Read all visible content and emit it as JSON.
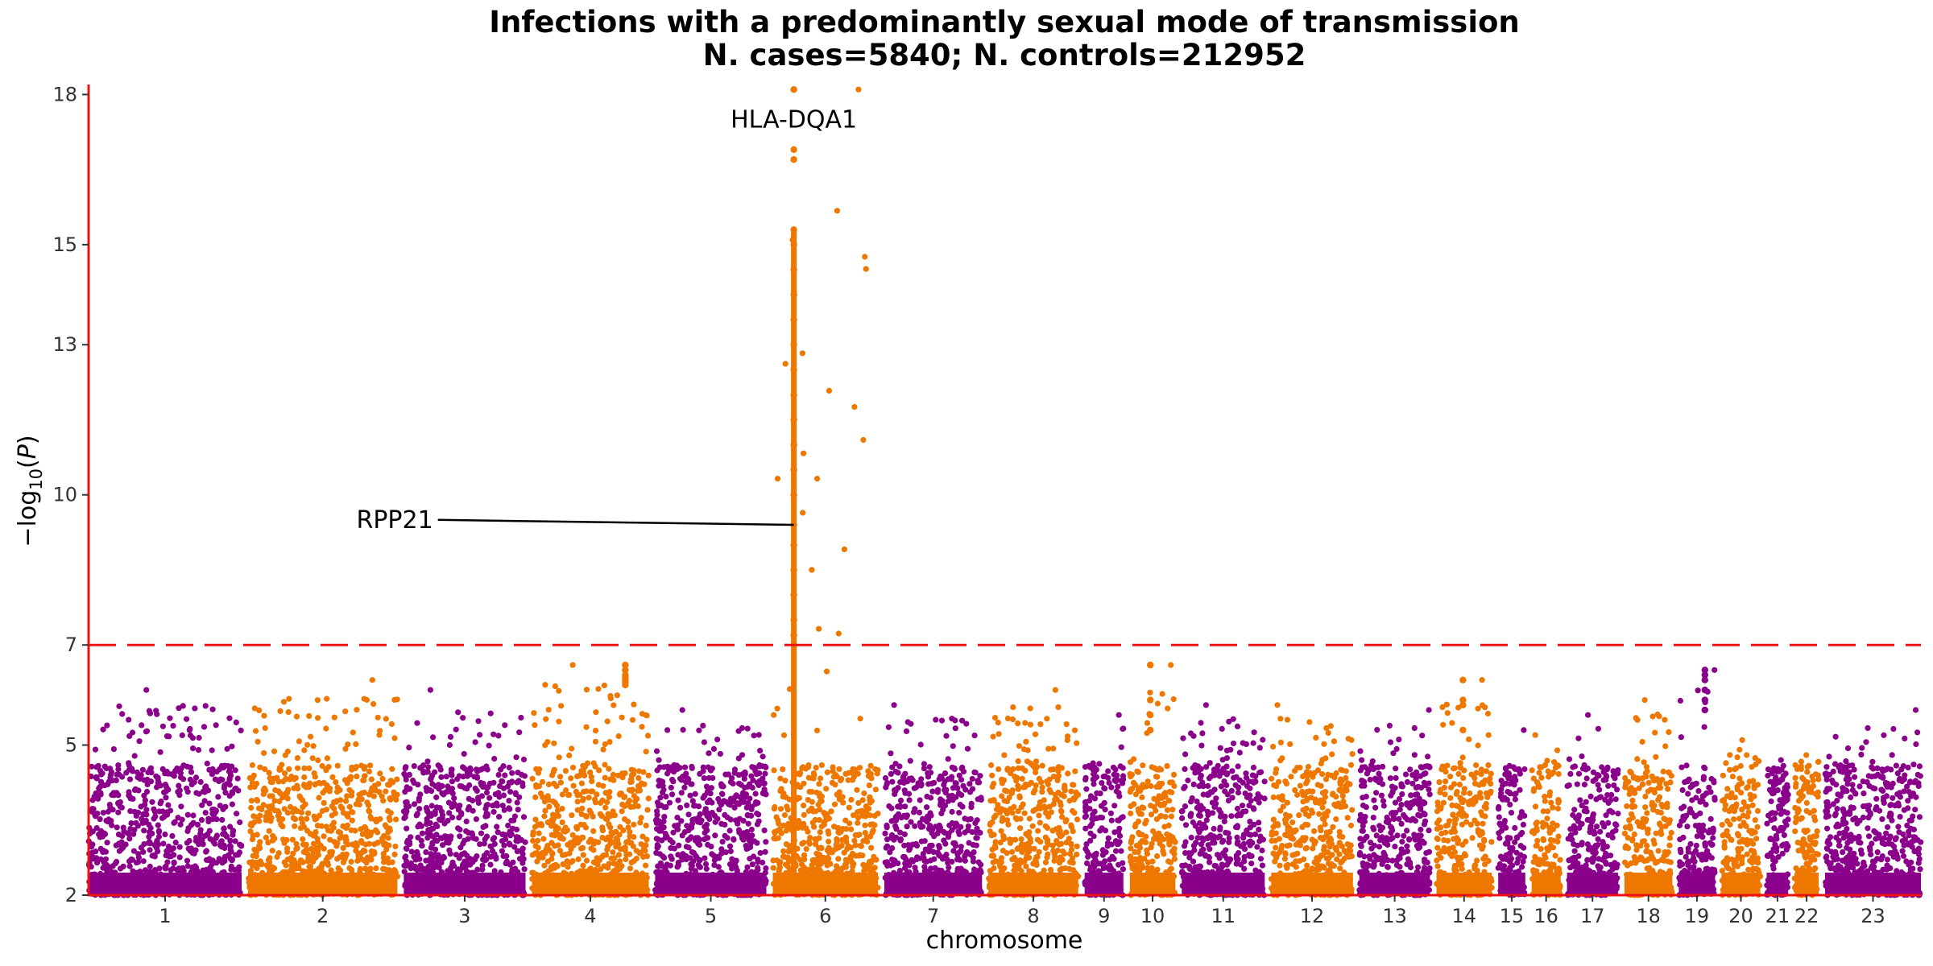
{
  "chart_data": {
    "type": "scatter",
    "title_line1": "Infections with a predominantly sexual mode of transmission",
    "title_line2": "N. cases=5840; N. controls=212952",
    "xlabel": "chromosome",
    "ylabel": "-log10(P)",
    "ylim": [
      2,
      18.2
    ],
    "y_ticks": [
      2,
      5,
      7,
      10,
      13,
      15,
      18
    ],
    "significance_threshold": 7,
    "colors": {
      "odd_chromosomes": "#8B008B",
      "even_chromosomes": "#EE7700",
      "threshold": "#EE1111",
      "axis": "#EE1111"
    },
    "chromosomes": [
      {
        "label": "1",
        "size": 249,
        "max": 6.1
      },
      {
        "label": "2",
        "size": 243,
        "max": 6.3
      },
      {
        "label": "3",
        "size": 198,
        "max": 6.1
      },
      {
        "label": "4",
        "size": 190,
        "max": 6.6
      },
      {
        "label": "5",
        "size": 181,
        "max": 5.7
      },
      {
        "label": "6",
        "size": 171,
        "max": 18.1
      },
      {
        "label": "7",
        "size": 159,
        "max": 5.8
      },
      {
        "label": "8",
        "size": 146,
        "max": 6.1
      },
      {
        "label": "9",
        "size": 63,
        "max": 5.6
      },
      {
        "label": "10",
        "size": 74,
        "max": 6.6
      },
      {
        "label": "11",
        "size": 135,
        "max": 5.8
      },
      {
        "label": "12",
        "size": 133,
        "max": 5.8
      },
      {
        "label": "13",
        "size": 115,
        "max": 5.7
      },
      {
        "label": "14",
        "size": 90,
        "max": 6.3
      },
      {
        "label": "15",
        "size": 44,
        "max": 5.3
      },
      {
        "label": "16",
        "size": 47,
        "max": 5.2
      },
      {
        "label": "17",
        "size": 83,
        "max": 5.6
      },
      {
        "label": "18",
        "size": 78,
        "max": 5.9
      },
      {
        "label": "19",
        "size": 59,
        "max": 6.5
      },
      {
        "label": "20",
        "size": 63,
        "max": 5.1
      },
      {
        "label": "21",
        "size": 35,
        "max": 4.7
      },
      {
        "label": "22",
        "size": 39,
        "max": 4.8
      },
      {
        "label": "23",
        "size": 156,
        "max": 5.7
      }
    ],
    "peaks": [
      {
        "chrom": "4",
        "pos": 0.8,
        "values": [
          6.2,
          6.25,
          6.3,
          6.35,
          6.4,
          6.5,
          6.6
        ]
      },
      {
        "chrom": "6",
        "pos": 0.2,
        "values": [
          7.2,
          7.5,
          8,
          8.5,
          9,
          9.4,
          10,
          10.5,
          11,
          11.5,
          12,
          12.5,
          13,
          13.5,
          14,
          14.5,
          15,
          15.3,
          16.7,
          16.9,
          18.1
        ]
      },
      {
        "chrom": "19",
        "pos": 0.72,
        "values": [
          5.7,
          5.9,
          6.1,
          6.3,
          6.4,
          6.5
        ]
      },
      {
        "chrom": "10",
        "pos": 0.45,
        "values": [
          5.3,
          5.6,
          5.9,
          6.6
        ]
      },
      {
        "chrom": "14",
        "pos": 0.48,
        "values": [
          5.3,
          5.8,
          5.9,
          6.3
        ]
      }
    ],
    "annotations": [
      {
        "text": "HLA-DQA1",
        "chrom": "6",
        "pos": 0.2,
        "y": 17.5,
        "leader": false
      },
      {
        "text": "RPP21",
        "chrom": "6",
        "pos": 0.2,
        "y": 9.4,
        "leader": true,
        "label_chrom": "3",
        "label_pos": 0.28,
        "label_y": 9.5
      }
    ]
  }
}
